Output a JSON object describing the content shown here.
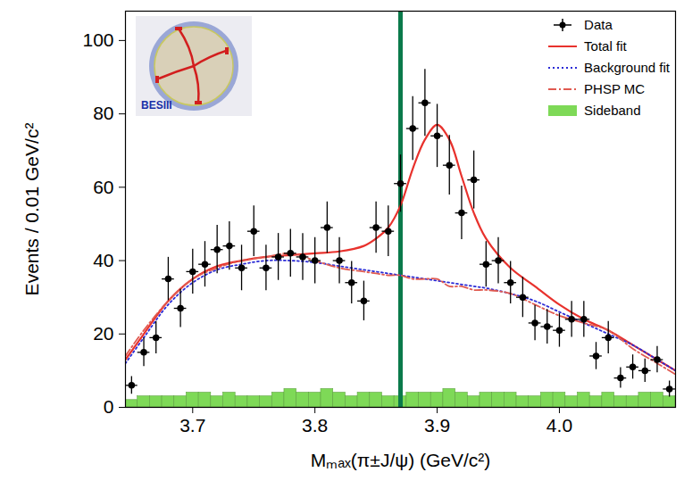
{
  "chart_data": {
    "type": "scatter",
    "xlabel": "Mₘₐₓ(π±J/ψ) (GeV/c²)",
    "ylabel": "Events / 0.01 GeV/c²",
    "xlim": [
      3.645,
      4.095
    ],
    "xticks": [
      3.7,
      3.8,
      3.9,
      {
        "value": 4,
        "label": "4.0"
      }
    ],
    "ylim": [
      0,
      108
    ],
    "yticks": [
      0,
      20,
      40,
      60,
      80,
      100
    ],
    "legend": "upper right",
    "series": [
      {
        "name": "Data",
        "type": "scatter",
        "color": "#000000",
        "marker": "circle",
        "x": [
          3.65,
          3.66,
          3.67,
          3.68,
          3.69,
          3.7,
          3.71,
          3.72,
          3.73,
          3.74,
          3.75,
          3.76,
          3.77,
          3.78,
          3.79,
          3.8,
          3.81,
          3.82,
          3.83,
          3.84,
          3.85,
          3.86,
          3.87,
          3.88,
          3.89,
          3.9,
          3.91,
          3.92,
          3.93,
          3.94,
          3.95,
          3.96,
          3.97,
          3.98,
          3.99,
          4.0,
          4.01,
          4.02,
          4.03,
          4.04,
          4.05,
          4.06,
          4.07,
          4.08,
          4.09
        ],
        "values": [
          6,
          15,
          19,
          35,
          27,
          37,
          39,
          43,
          44,
          38,
          48,
          38,
          41,
          42,
          41,
          40,
          49,
          40,
          34,
          29,
          49,
          48,
          61,
          76,
          83,
          74,
          66,
          53,
          62,
          39,
          40,
          34,
          30,
          23,
          22,
          21,
          24,
          24,
          14,
          19,
          8,
          11,
          10,
          13,
          5
        ],
        "errors": [
          2.4,
          3.9,
          4.4,
          5.9,
          5.2,
          6.1,
          6.2,
          6.6,
          6.6,
          6.2,
          6.9,
          6.2,
          6.4,
          6.5,
          6.4,
          6.3,
          7,
          6.3,
          5.8,
          5.4,
          7,
          6.9,
          7.8,
          8.7,
          9.1,
          8.6,
          8.1,
          7.3,
          7.9,
          6.2,
          6.3,
          5.8,
          5.5,
          4.8,
          4.7,
          4.6,
          4.9,
          4.9,
          3.7,
          4.4,
          2.8,
          3.3,
          3.2,
          3.6,
          2.2
        ]
      },
      {
        "name": "Total fit",
        "type": "line",
        "color": "#e8322d",
        "line_style": "solid",
        "x": [
          3.645,
          3.66,
          3.68,
          3.7,
          3.72,
          3.74,
          3.76,
          3.78,
          3.8,
          3.82,
          3.84,
          3.85,
          3.86,
          3.87,
          3.88,
          3.89,
          3.9,
          3.91,
          3.92,
          3.93,
          3.94,
          3.96,
          3.98,
          4.0,
          4.02,
          4.04,
          4.06,
          4.08,
          4.095
        ],
        "values": [
          13,
          20,
          29,
          35,
          38.5,
          40,
          41,
          41.5,
          42,
          42.5,
          44,
          46,
          49,
          55,
          65,
          73,
          77,
          73,
          63,
          53,
          46,
          38,
          33,
          28,
          24,
          21,
          17,
          13,
          10
        ]
      },
      {
        "name": "Background fit",
        "type": "line",
        "color": "#2b2bd6",
        "line_style": "dotted",
        "x": [
          3.645,
          3.66,
          3.68,
          3.7,
          3.72,
          3.74,
          3.76,
          3.78,
          3.8,
          3.82,
          3.84,
          3.85,
          3.86,
          3.87,
          3.88,
          3.89,
          3.9,
          3.91,
          3.92,
          3.93,
          3.94,
          3.96,
          3.98,
          4.0,
          4.02,
          4.04,
          4.06,
          4.08,
          4.095
        ],
        "values": [
          12,
          19,
          28,
          34,
          37.5,
          39,
          40,
          40,
          39.5,
          38.5,
          37.5,
          37,
          36.5,
          36,
          35.5,
          35,
          34.5,
          34,
          33.5,
          33,
          32.5,
          31,
          29,
          26,
          23,
          20,
          17,
          13,
          10
        ]
      },
      {
        "name": "PHSP MC",
        "type": "line",
        "color": "#e05a50",
        "line_style": "dashdot",
        "x": [
          3.645,
          3.66,
          3.68,
          3.7,
          3.72,
          3.74,
          3.76,
          3.78,
          3.8,
          3.82,
          3.84,
          3.85,
          3.86,
          3.87,
          3.88,
          3.89,
          3.9,
          3.91,
          3.92,
          3.93,
          3.94,
          3.96,
          3.98,
          4.0,
          4.02,
          4.04,
          4.06,
          4.08,
          4.095
        ],
        "values": [
          14,
          21,
          29,
          35,
          38,
          40,
          41,
          42,
          40,
          38,
          37,
          36.5,
          36,
          36,
          35,
          35,
          35,
          33,
          33,
          32,
          32,
          31,
          28,
          25,
          23,
          21,
          16,
          12,
          9
        ]
      },
      {
        "name": "Sideband",
        "type": "histogram",
        "color": "#7ed957",
        "bins": [
          3.645,
          3.655,
          3.665,
          3.675,
          3.685,
          3.695,
          3.705,
          3.715,
          3.725,
          3.735,
          3.745,
          3.755,
          3.765,
          3.775,
          3.785,
          3.795,
          3.805,
          3.815,
          3.825,
          3.835,
          3.845,
          3.855,
          3.865,
          3.875,
          3.885,
          3.895,
          3.905,
          3.915,
          3.925,
          3.935,
          3.945,
          3.955,
          3.965,
          3.975,
          3.985,
          3.995,
          4.005,
          4.015,
          4.025,
          4.035,
          4.045,
          4.055,
          4.065,
          4.075,
          4.085,
          4.095
        ],
        "values": [
          2,
          3,
          3,
          3,
          3,
          4,
          4,
          3,
          4,
          3,
          3,
          3,
          4,
          5,
          4,
          4,
          5,
          4,
          3,
          4,
          4,
          3,
          3,
          4,
          4,
          4,
          5,
          4,
          3,
          4,
          4,
          4,
          3,
          3,
          4,
          4,
          3,
          4,
          3,
          4,
          3,
          3,
          4,
          4,
          3
        ]
      }
    ],
    "annotations": [
      {
        "type": "vline",
        "x": 3.87,
        "color": "#0b7a4b"
      },
      {
        "type": "inset",
        "text": "BESIII"
      }
    ]
  }
}
